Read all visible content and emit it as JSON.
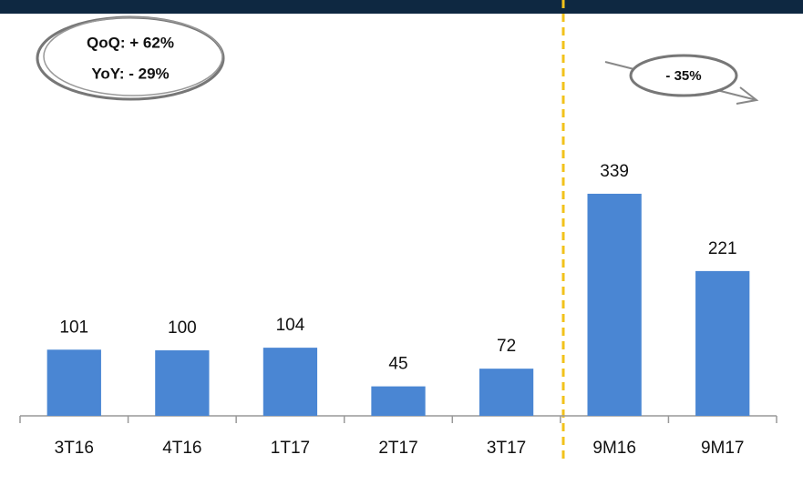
{
  "chart_data": {
    "type": "bar",
    "categories": [
      "3T16",
      "4T16",
      "1T17",
      "2T17",
      "3T17",
      "9M16",
      "9M17"
    ],
    "values": [
      101,
      100,
      104,
      45,
      72,
      339,
      221
    ],
    "color": "#4a86d3",
    "ylim": [
      0,
      400
    ],
    "annotations": [
      "QoQ: + 62%",
      "YoY: - 29%",
      "- 35%"
    ]
  }
}
